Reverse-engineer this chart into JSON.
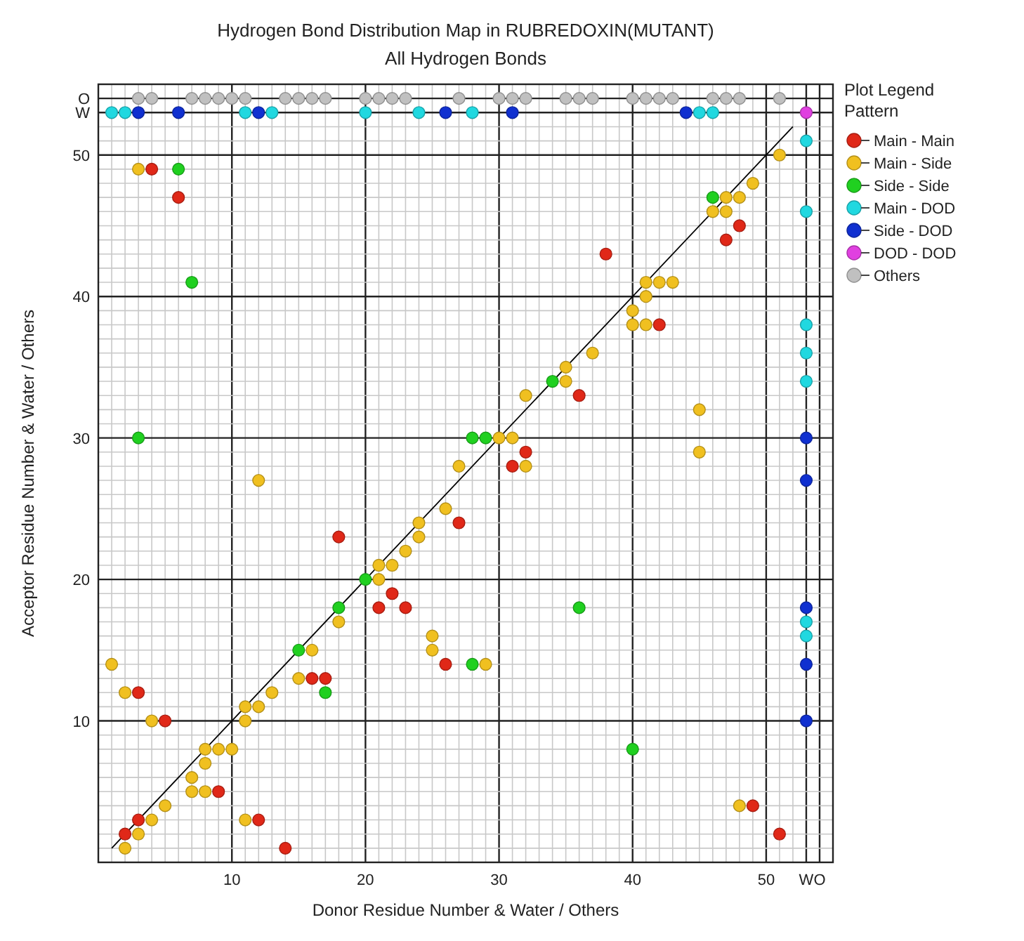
{
  "chart_data": {
    "type": "scatter",
    "title": "Hydrogen Bond Distribution Map in RUBREDOXIN(MUTANT)",
    "subtitle": "All Hydrogen Bonds",
    "xlabel": "Donor Residue Number & Water / Others",
    "ylabel": "Acceptor Residue Number & Water / Others",
    "legend_title": "Plot Legend\nPattern",
    "legend": "right",
    "grid": true,
    "marker": "circle",
    "xlim": [
      0,
      55
    ],
    "ylim": [
      0,
      55
    ],
    "xticks": [
      {
        "value": 1,
        "label": null
      },
      {
        "value": 2,
        "label": null
      },
      {
        "value": 3,
        "label": null
      },
      {
        "value": 4,
        "label": null
      },
      {
        "value": 5,
        "label": null
      },
      {
        "value": 6,
        "label": null
      },
      {
        "value": 7,
        "label": null
      },
      {
        "value": 8,
        "label": null
      },
      {
        "value": 9,
        "label": null
      },
      10,
      {
        "value": 11,
        "label": null
      },
      {
        "value": 12,
        "label": null
      },
      {
        "value": 13,
        "label": null
      },
      {
        "value": 14,
        "label": null
      },
      {
        "value": 15,
        "label": null
      },
      {
        "value": 16,
        "label": null
      },
      {
        "value": 17,
        "label": null
      },
      {
        "value": 18,
        "label": null
      },
      {
        "value": 19,
        "label": null
      },
      20,
      {
        "value": 21,
        "label": null
      },
      {
        "value": 22,
        "label": null
      },
      {
        "value": 23,
        "label": null
      },
      {
        "value": 24,
        "label": null
      },
      {
        "value": 25,
        "label": null
      },
      {
        "value": 26,
        "label": null
      },
      {
        "value": 27,
        "label": null
      },
      {
        "value": 28,
        "label": null
      },
      {
        "value": 29,
        "label": null
      },
      30,
      {
        "value": 31,
        "label": null
      },
      {
        "value": 32,
        "label": null
      },
      {
        "value": 33,
        "label": null
      },
      {
        "value": 34,
        "label": null
      },
      {
        "value": 35,
        "label": null
      },
      {
        "value": 36,
        "label": null
      },
      {
        "value": 37,
        "label": null
      },
      {
        "value": 38,
        "label": null
      },
      {
        "value": 39,
        "label": null
      },
      40,
      {
        "value": 41,
        "label": null
      },
      {
        "value": 42,
        "label": null
      },
      {
        "value": 43,
        "label": null
      },
      {
        "value": 44,
        "label": null
      },
      {
        "value": 45,
        "label": null
      },
      {
        "value": 46,
        "label": null
      },
      {
        "value": 47,
        "label": null
      },
      {
        "value": 48,
        "label": null
      },
      {
        "value": 49,
        "label": null
      },
      50,
      {
        "value": 51,
        "label": null
      },
      {
        "value": 52,
        "label": null
      },
      {
        "value": 53,
        "label": "W"
      },
      {
        "value": 54,
        "label": "O"
      }
    ],
    "yticks": [
      {
        "value": 1,
        "label": null
      },
      {
        "value": 2,
        "label": null
      },
      {
        "value": 3,
        "label": null
      },
      {
        "value": 4,
        "label": null
      },
      {
        "value": 5,
        "label": null
      },
      {
        "value": 6,
        "label": null
      },
      {
        "value": 7,
        "label": null
      },
      {
        "value": 8,
        "label": null
      },
      {
        "value": 9,
        "label": null
      },
      10,
      {
        "value": 11,
        "label": null
      },
      {
        "value": 12,
        "label": null
      },
      {
        "value": 13,
        "label": null
      },
      {
        "value": 14,
        "label": null
      },
      {
        "value": 15,
        "label": null
      },
      {
        "value": 16,
        "label": null
      },
      {
        "value": 17,
        "label": null
      },
      {
        "value": 18,
        "label": null
      },
      {
        "value": 19,
        "label": null
      },
      20,
      {
        "value": 21,
        "label": null
      },
      {
        "value": 22,
        "label": null
      },
      {
        "value": 23,
        "label": null
      },
      {
        "value": 24,
        "label": null
      },
      {
        "value": 25,
        "label": null
      },
      {
        "value": 26,
        "label": null
      },
      {
        "value": 27,
        "label": null
      },
      {
        "value": 28,
        "label": null
      },
      {
        "value": 29,
        "label": null
      },
      30,
      {
        "value": 31,
        "label": null
      },
      {
        "value": 32,
        "label": null
      },
      {
        "value": 33,
        "label": null
      },
      {
        "value": 34,
        "label": null
      },
      {
        "value": 35,
        "label": null
      },
      {
        "value": 36,
        "label": null
      },
      {
        "value": 37,
        "label": null
      },
      {
        "value": 38,
        "label": null
      },
      {
        "value": 39,
        "label": null
      },
      40,
      {
        "value": 41,
        "label": null
      },
      {
        "value": 42,
        "label": null
      },
      {
        "value": 43,
        "label": null
      },
      {
        "value": 44,
        "label": null
      },
      {
        "value": 45,
        "label": null
      },
      {
        "value": 46,
        "label": null
      },
      {
        "value": 47,
        "label": null
      },
      {
        "value": 48,
        "label": null
      },
      {
        "value": 49,
        "label": null
      },
      50,
      {
        "value": 51,
        "label": null
      },
      {
        "value": 52,
        "label": null
      },
      {
        "value": 53,
        "label": "W"
      },
      {
        "value": 54,
        "label": "O"
      }
    ],
    "series": [
      {
        "type": "line",
        "color": "#000000",
        "marker": "none",
        "x": [
          1,
          52
        ],
        "values": [
          1,
          52
        ]
      },
      {
        "name": "Main - Main",
        "color": "#e02818",
        "x": [
          4,
          6,
          38,
          48,
          47,
          42,
          36,
          32,
          31,
          18,
          27,
          22,
          21,
          23,
          26,
          16,
          17,
          3,
          5,
          9,
          3,
          12,
          2,
          14,
          49,
          51
        ],
        "values": [
          49,
          47,
          43,
          45,
          44,
          38,
          33,
          29,
          28,
          23,
          24,
          19,
          18,
          18,
          14,
          13,
          13,
          12,
          10,
          5,
          3,
          3,
          2,
          1,
          4,
          2
        ]
      },
      {
        "name": "Main - Side",
        "color": "#f0c020",
        "x": [
          3,
          51,
          49,
          47,
          48,
          46,
          47,
          41,
          42,
          43,
          41,
          40,
          40,
          41,
          37,
          35,
          35,
          32,
          45,
          45,
          30,
          31,
          27,
          32,
          12,
          26,
          24,
          24,
          23,
          21,
          22,
          21,
          18,
          25,
          25,
          29,
          16,
          15,
          13,
          11,
          12,
          11,
          1,
          2,
          4,
          8,
          9,
          10,
          8,
          7,
          7,
          8,
          5,
          4,
          11,
          3,
          2,
          48
        ],
        "values": [
          49,
          50,
          48,
          47,
          47,
          46,
          46,
          41,
          41,
          41,
          40,
          39,
          38,
          38,
          36,
          35,
          34,
          33,
          32,
          29,
          30,
          30,
          28,
          28,
          27,
          25,
          24,
          23,
          22,
          21,
          21,
          20,
          17,
          16,
          15,
          14,
          15,
          13,
          12,
          11,
          11,
          10,
          14,
          12,
          10,
          8,
          8,
          8,
          7,
          6,
          5,
          5,
          4,
          3,
          3,
          2,
          1,
          4
        ]
      },
      {
        "name": "Side - Side",
        "color": "#20d020",
        "x": [
          6,
          7,
          3,
          28,
          29,
          46,
          34,
          20,
          18,
          15,
          17,
          28,
          36,
          40
        ],
        "values": [
          49,
          41,
          30,
          30,
          30,
          47,
          34,
          20,
          18,
          15,
          12,
          14,
          18,
          8
        ]
      },
      {
        "name": "Main - DOD",
        "color": "#20d8e0",
        "x": [
          1,
          2,
          11,
          13,
          20,
          24,
          28,
          45,
          46,
          53,
          53,
          53,
          53,
          53,
          53,
          53
        ],
        "values": [
          53,
          53,
          53,
          53,
          53,
          53,
          53,
          53,
          53,
          51,
          46,
          38,
          36,
          34,
          17,
          16
        ]
      },
      {
        "name": "Side - DOD",
        "color": "#1030d0",
        "x": [
          3,
          6,
          12,
          26,
          31,
          44,
          53,
          53,
          53,
          53,
          53
        ],
        "values": [
          53,
          53,
          53,
          53,
          53,
          53,
          30,
          27,
          18,
          14,
          10
        ]
      },
      {
        "name": "DOD - DOD",
        "color": "#e040e0",
        "x": [
          53
        ],
        "values": [
          53
        ]
      },
      {
        "name": "Others",
        "color": "#c0c0c0",
        "x": [
          3,
          4,
          7,
          8,
          9,
          10,
          11,
          14,
          15,
          16,
          17,
          20,
          21,
          22,
          23,
          27,
          30,
          31,
          32,
          35,
          36,
          37,
          40,
          41,
          42,
          43,
          46,
          47,
          48,
          51
        ],
        "values": [
          54,
          54,
          54,
          54,
          54,
          54,
          54,
          54,
          54,
          54,
          54,
          54,
          54,
          54,
          54,
          54,
          54,
          54,
          54,
          54,
          54,
          54,
          54,
          54,
          54,
          54,
          54,
          54,
          54,
          54
        ]
      }
    ]
  }
}
